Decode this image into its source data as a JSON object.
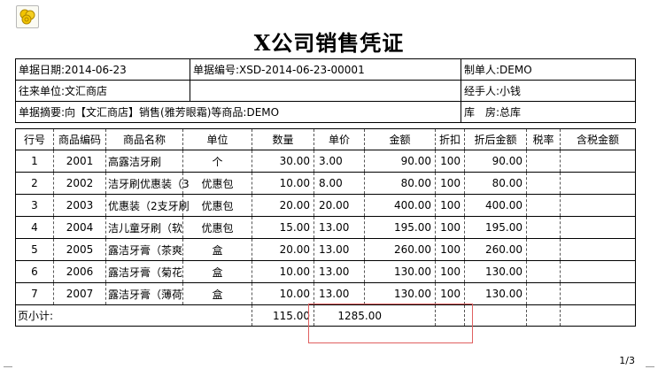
{
  "logo": {
    "icon": "coins-logo-icon",
    "color": "#e8b800"
  },
  "title": "X公司销售凭证",
  "header": {
    "date_label": "单据日期:",
    "date_value": "2014-06-23",
    "number_label": "单据编号:",
    "number_value": "XSD-2014-06-23-00001",
    "maker": "制单人:DEMO",
    "partner_label": "往来单位:",
    "partner_value": "文汇商店",
    "handler": "经手人:小钱",
    "summary_label": "单据摘要:",
    "summary_value": "向【文汇商店】销售(雅芳眼霜)等商品:DEMO",
    "warehouse": "库　房:总库"
  },
  "columns": [
    "行号",
    "商品编码",
    "商品名称",
    "单位",
    "数量",
    "单价",
    "金额",
    "折扣",
    "折后金额",
    "税率",
    "含税金额"
  ],
  "rows": [
    [
      "1",
      "2001",
      "高露洁牙刷",
      "个",
      "30.00",
      "3.00",
      "90.00",
      "100",
      "90.00",
      "",
      ""
    ],
    [
      "2",
      "2002",
      "洁牙刷优惠装（3",
      "优惠包",
      "10.00",
      "8.00",
      "80.00",
      "100",
      "80.00",
      "",
      ""
    ],
    [
      "3",
      "2003",
      "优惠装（2支牙刷",
      "优惠包",
      "20.00",
      "20.00",
      "400.00",
      "100",
      "400.00",
      "",
      ""
    ],
    [
      "4",
      "2004",
      "洁儿童牙刷（软",
      "优惠包",
      "15.00",
      "13.00",
      "195.00",
      "100",
      "195.00",
      "",
      ""
    ],
    [
      "5",
      "2005",
      "露洁牙膏（茶爽",
      "盒",
      "20.00",
      "13.00",
      "260.00",
      "100",
      "260.00",
      "",
      ""
    ],
    [
      "6",
      "2006",
      "露洁牙膏（菊花",
      "盒",
      "10.00",
      "13.00",
      "130.00",
      "100",
      "130.00",
      "",
      ""
    ],
    [
      "7",
      "2007",
      "露洁牙膏（薄荷",
      "盒",
      "10.00",
      "13.00",
      "130.00",
      "100",
      "130.00",
      "",
      ""
    ]
  ],
  "subtotal": {
    "label": "页小计:",
    "quantity": "115.00",
    "amount": "1285.00"
  },
  "highlight_color": "#e06060",
  "page_number": "1/3"
}
